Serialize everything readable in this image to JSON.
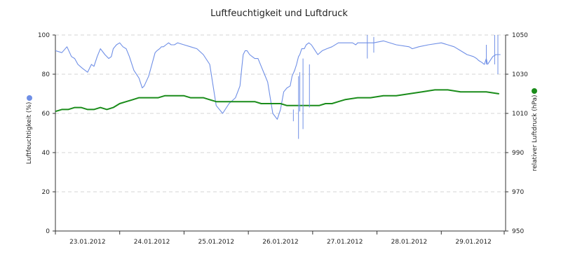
{
  "chart_data": {
    "type": "line",
    "title": "Luftfeuchtigkeit und Luftdruck",
    "grid": "horizontal dashed",
    "legend": "colored dots beside axis titles",
    "x_ticks": [
      "23.01.2012",
      "24.01.2012",
      "25.01.2012",
      "26.01.2012",
      "27.01.2012",
      "28.01.2012",
      "29.01.2012"
    ],
    "y_left": {
      "label": "Luftfeuchtigkeit (%)",
      "range": [
        0,
        100
      ],
      "ticks": [
        "0",
        "20",
        "40",
        "60",
        "80",
        "100"
      ]
    },
    "y_right": {
      "label": "relativer Luftdruck (hPa)",
      "range": [
        950,
        1050
      ],
      "ticks": [
        "950",
        "970",
        "990",
        "1010",
        "1030",
        "1050"
      ]
    },
    "series": [
      {
        "axis": "left",
        "color": "#6f8fe6",
        "x": [
          22.5,
          22.6,
          22.68,
          22.75,
          22.8,
          22.85,
          22.92,
          23.0,
          23.06,
          23.1,
          23.15,
          23.2,
          23.27,
          23.33,
          23.37,
          23.4,
          23.45,
          23.5,
          23.55,
          23.6,
          23.65,
          23.72,
          23.8,
          23.85,
          23.88,
          23.95,
          24.0,
          24.05,
          24.08,
          24.12,
          24.15,
          24.18,
          24.22,
          24.26,
          24.3,
          24.35,
          24.4,
          24.5,
          24.6,
          24.7,
          24.8,
          24.9,
          25.0,
          25.1,
          25.2,
          25.3,
          25.37,
          25.4,
          25.42,
          25.45,
          25.48,
          25.52,
          25.56,
          25.6,
          25.65,
          25.7,
          25.75,
          25.8,
          25.88,
          25.95,
          26.0,
          26.05,
          26.1,
          26.15,
          26.18,
          26.22,
          26.25,
          26.28,
          26.3,
          26.33,
          26.37,
          26.4,
          26.44,
          26.48,
          26.52,
          26.58,
          26.65,
          26.72,
          26.8,
          26.9,
          27.0,
          27.08,
          27.12,
          27.17,
          27.2,
          27.28,
          27.35,
          27.45,
          27.6,
          27.8,
          28.0,
          28.05,
          28.15,
          28.3,
          28.5,
          28.6,
          28.7,
          28.8,
          28.9,
          29.0,
          29.05,
          29.08,
          29.13,
          29.17,
          29.2,
          29.22,
          29.26,
          29.3,
          29.35,
          29.42
        ],
        "values": [
          92,
          91,
          94,
          89,
          88,
          85,
          83,
          81,
          85,
          84,
          89,
          93,
          90,
          88,
          89,
          93,
          95,
          96,
          94,
          93,
          89,
          82,
          78,
          73,
          74,
          79,
          85,
          91,
          92,
          93,
          94,
          94,
          95,
          96,
          95,
          95,
          96,
          95,
          94,
          93,
          90,
          85,
          64,
          60,
          65,
          68,
          74,
          84,
          90,
          92,
          92,
          90,
          89,
          88,
          88,
          84,
          80,
          76,
          60,
          57,
          62,
          71,
          73,
          74,
          79,
          82,
          85,
          89,
          90,
          93,
          93,
          95,
          96,
          95,
          93,
          90,
          92,
          93,
          94,
          96,
          96,
          96,
          96,
          95,
          96,
          96,
          96,
          96,
          97,
          95,
          94,
          93,
          94,
          95,
          96,
          95,
          94,
          92,
          90,
          89,
          88,
          87,
          86,
          85,
          88,
          85,
          87,
          89,
          90,
          90
        ]
      },
      {
        "axis": "right",
        "color": "#1a8c1a",
        "x": [
          22.5,
          22.6,
          22.7,
          22.8,
          22.9,
          23.0,
          23.1,
          23.2,
          23.3,
          23.4,
          23.5,
          23.6,
          23.7,
          23.8,
          23.9,
          24.0,
          24.1,
          24.2,
          24.3,
          24.4,
          24.5,
          24.6,
          24.7,
          24.8,
          24.9,
          25.0,
          25.1,
          25.2,
          25.3,
          25.4,
          25.5,
          25.6,
          25.7,
          25.8,
          25.9,
          26.0,
          26.1,
          26.2,
          26.3,
          26.4,
          26.5,
          26.6,
          26.7,
          26.8,
          26.9,
          27.0,
          27.2,
          27.4,
          27.6,
          27.8,
          28.0,
          28.2,
          28.4,
          28.6,
          28.8,
          29.0,
          29.2,
          29.4
        ],
        "values": [
          1011,
          1012,
          1012,
          1013,
          1013,
          1012,
          1012,
          1013,
          1012,
          1013,
          1015,
          1016,
          1017,
          1018,
          1018,
          1018,
          1018,
          1019,
          1019,
          1019,
          1019,
          1018,
          1018,
          1018,
          1017,
          1016,
          1016,
          1016,
          1016,
          1016,
          1016,
          1016,
          1015,
          1015,
          1015,
          1015,
          1014,
          1014,
          1014,
          1014,
          1014,
          1014,
          1015,
          1015,
          1016,
          1017,
          1018,
          1018,
          1019,
          1019,
          1020,
          1021,
          1022,
          1022,
          1021,
          1021,
          1021,
          1020
        ]
      }
    ],
    "spikes": [
      {
        "x": 26.28,
        "low": 47,
        "high": 79
      },
      {
        "x": 26.35,
        "low": 52,
        "high": 88
      },
      {
        "x": 26.3,
        "low": 61,
        "high": 81
      },
      {
        "x": 26.45,
        "low": 63,
        "high": 85
      },
      {
        "x": 26.2,
        "low": 56,
        "high": 62
      },
      {
        "x": 27.35,
        "low": 88,
        "high": 100
      },
      {
        "x": 27.45,
        "low": 91,
        "high": 99
      },
      {
        "x": 29.38,
        "low": 80,
        "high": 100
      },
      {
        "x": 29.33,
        "low": 85,
        "high": 100
      },
      {
        "x": 29.2,
        "low": 85,
        "high": 95
      }
    ]
  }
}
